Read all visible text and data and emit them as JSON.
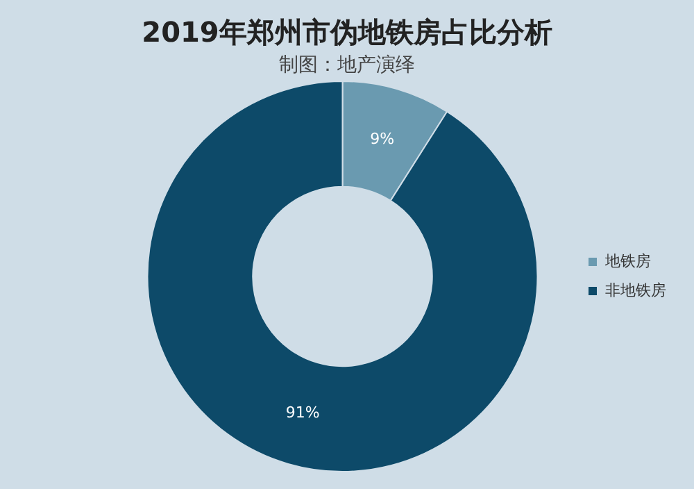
{
  "chart_data": {
    "type": "donut",
    "title": "2019年郑州市伪地铁房占比分析",
    "subtitle": "制图：地产演绎",
    "categories": [
      "地铁房",
      "非地铁房"
    ],
    "values": [
      9,
      91
    ],
    "colors": [
      "#6a9ab0",
      "#0d4a69"
    ],
    "value_labels": [
      "9%",
      "91%"
    ],
    "legend": "right"
  }
}
